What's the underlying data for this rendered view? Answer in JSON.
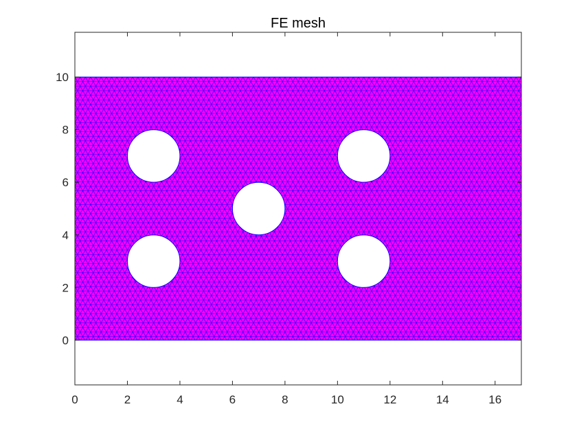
{
  "chart_data": {
    "type": "mesh",
    "title": "FE mesh",
    "xlabel": "",
    "ylabel": "",
    "xlim": [
      0,
      17
    ],
    "ylim": [
      -1.7,
      11.7
    ],
    "xticks": [
      0,
      2,
      4,
      6,
      8,
      10,
      12,
      14,
      16
    ],
    "yticks": [
      0,
      2,
      4,
      6,
      8,
      10
    ],
    "grid": false,
    "domain": {
      "x": [
        0,
        17
      ],
      "y": [
        0,
        10
      ]
    },
    "holes": [
      {
        "cx": 3,
        "cy": 7,
        "r": 1
      },
      {
        "cx": 11,
        "cy": 7,
        "r": 1
      },
      {
        "cx": 7,
        "cy": 5,
        "r": 1
      },
      {
        "cx": 3,
        "cy": 3,
        "r": 1
      },
      {
        "cx": 11,
        "cy": 3,
        "r": 1
      }
    ],
    "element_size": 0.2,
    "colors": {
      "fill": "#ff00ff",
      "edge": "#0000ff",
      "axes": "#262626"
    }
  }
}
